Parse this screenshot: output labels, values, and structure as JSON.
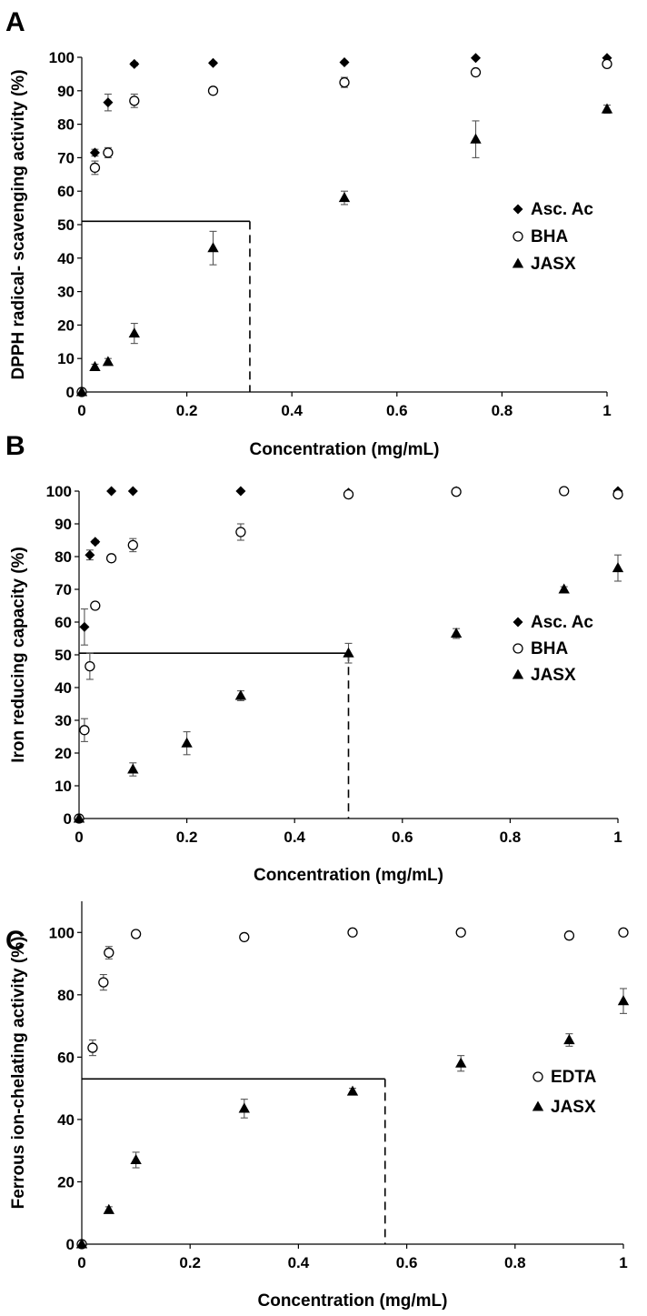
{
  "chart_data": [
    {
      "type": "scatter",
      "panel_label": "A",
      "xlabel": "Concentration (mg/mL)",
      "ylabel": "DPPH radical- scavenging activity (%)",
      "xlim": [
        0,
        1
      ],
      "ylim": [
        0,
        100
      ],
      "x_ticks": [
        0,
        0.2,
        0.4,
        0.6,
        0.8,
        1
      ],
      "x_tick_labels": [
        "0",
        "0.2",
        "0.4",
        "0.6",
        "0.8",
        "1"
      ],
      "y_ticks": [
        0,
        10,
        20,
        30,
        40,
        50,
        60,
        70,
        80,
        90,
        100
      ],
      "y_tick_labels": [
        "0",
        "10",
        "20",
        "30",
        "40",
        "50",
        "60",
        "70",
        "80",
        "90",
        "100"
      ],
      "legend_position": "right",
      "reference": {
        "y": 51,
        "x": 0.32
      },
      "series": [
        {
          "name": "Asc. Ac",
          "marker": "diamond",
          "x": [
            0,
            0.025,
            0.05,
            0.1,
            0.25,
            0.5,
            0.75,
            1
          ],
          "y": [
            0,
            71.5,
            86.5,
            98,
            98.3,
            98.5,
            99.8,
            99.8
          ],
          "err": [
            0,
            1,
            2.5,
            0.5,
            0.4,
            0.4,
            0.2,
            0.2
          ]
        },
        {
          "name": "BHA",
          "marker": "circle",
          "x": [
            0,
            0.025,
            0.05,
            0.1,
            0.25,
            0.5,
            0.75,
            1
          ],
          "y": [
            0,
            67,
            71.5,
            87,
            90,
            92.5,
            95.5,
            98
          ],
          "err": [
            0,
            2,
            1.5,
            2,
            1,
            1.5,
            0.5,
            0.5
          ]
        },
        {
          "name": "JASX",
          "marker": "triangle",
          "x": [
            0,
            0.025,
            0.05,
            0.1,
            0.25,
            0.5,
            0.75,
            1
          ],
          "y": [
            0,
            7.5,
            9,
            17.5,
            43,
            58,
            75.5,
            84.5
          ],
          "err": [
            0,
            0.8,
            1,
            3,
            5,
            2,
            5.5,
            1.2
          ]
        }
      ]
    },
    {
      "type": "scatter",
      "panel_label": "B",
      "xlabel": "Concentration (mg/mL)",
      "ylabel": "Iron reducing capacity (%)",
      "xlim": [
        0,
        1
      ],
      "ylim": [
        0,
        100
      ],
      "x_ticks": [
        0,
        0.2,
        0.4,
        0.6,
        0.8,
        1
      ],
      "x_tick_labels": [
        "0",
        "0.2",
        "0.4",
        "0.6",
        "0.8",
        "1"
      ],
      "y_ticks": [
        0,
        10,
        20,
        30,
        40,
        50,
        60,
        70,
        80,
        90,
        100
      ],
      "y_tick_labels": [
        "0",
        "10",
        "20",
        "30",
        "40",
        "50",
        "60",
        "70",
        "80",
        "90",
        "100"
      ],
      "legend_position": "right",
      "reference": {
        "y": 50.5,
        "x": 0.5
      },
      "series": [
        {
          "name": "Asc. Ac",
          "marker": "diamond",
          "x": [
            0,
            0.01,
            0.02,
            0.03,
            0.06,
            0.1,
            0.3,
            0.5,
            0.7,
            0.9,
            1
          ],
          "y": [
            0,
            58.5,
            80.5,
            84.5,
            100,
            100,
            100,
            99.5,
            100,
            100,
            100
          ],
          "err": [
            0,
            5.5,
            1.5,
            0.5,
            0.2,
            0.2,
            0.2,
            0.3,
            0.2,
            0.2,
            0.2
          ]
        },
        {
          "name": "BHA",
          "marker": "circle",
          "x": [
            0,
            0.01,
            0.02,
            0.03,
            0.06,
            0.1,
            0.3,
            0.5,
            0.7,
            0.9,
            1
          ],
          "y": [
            0,
            27,
            46.5,
            65,
            79.5,
            83.5,
            87.5,
            99,
            99.8,
            100,
            99
          ],
          "err": [
            0,
            3.5,
            4,
            0.5,
            0.5,
            2,
            2.5,
            0.8,
            0.5,
            0.3,
            1
          ]
        },
        {
          "name": "JASX",
          "marker": "triangle",
          "x": [
            0,
            0.1,
            0.2,
            0.3,
            0.5,
            0.7,
            0.9,
            1
          ],
          "y": [
            0,
            15,
            23,
            37.5,
            50.5,
            56.5,
            70,
            76.5
          ],
          "err": [
            0,
            2,
            3.5,
            1.5,
            3,
            1.5,
            0.8,
            4
          ]
        }
      ]
    },
    {
      "type": "scatter",
      "panel_label": "C",
      "xlabel": "Concentration (mg/mL)",
      "ylabel": "Ferrous ion-chelating activity (%)",
      "xlim": [
        0,
        1
      ],
      "ylim": [
        0,
        110
      ],
      "x_ticks": [
        0,
        0.2,
        0.4,
        0.6,
        0.8,
        1
      ],
      "x_tick_labels": [
        "0",
        "0.2",
        "0.4",
        "0.6",
        "0.8",
        "1"
      ],
      "y_ticks": [
        0,
        20,
        40,
        60,
        80,
        100
      ],
      "y_tick_labels": [
        "0",
        "20",
        "40",
        "60",
        "80",
        "100"
      ],
      "legend_position": "right",
      "reference": {
        "y": 53,
        "x": 0.56
      },
      "series": [
        {
          "name": "EDTA",
          "marker": "circle",
          "x": [
            0,
            0.02,
            0.04,
            0.05,
            0.1,
            0.3,
            0.5,
            0.7,
            0.9,
            1
          ],
          "y": [
            0,
            63,
            84,
            93.5,
            99.5,
            98.5,
            100,
            100,
            99,
            100
          ],
          "err": [
            0,
            2.5,
            2.5,
            2,
            0.5,
            1,
            0.3,
            0.3,
            0.3,
            0.3
          ]
        },
        {
          "name": "JASX",
          "marker": "triangle",
          "x": [
            0,
            0.05,
            0.1,
            0.3,
            0.5,
            0.7,
            0.9,
            1
          ],
          "y": [
            0,
            11,
            27,
            43.5,
            49,
            58,
            65.5,
            78
          ],
          "err": [
            0,
            1,
            2.5,
            3,
            1,
            2.5,
            2,
            4
          ]
        }
      ]
    }
  ]
}
